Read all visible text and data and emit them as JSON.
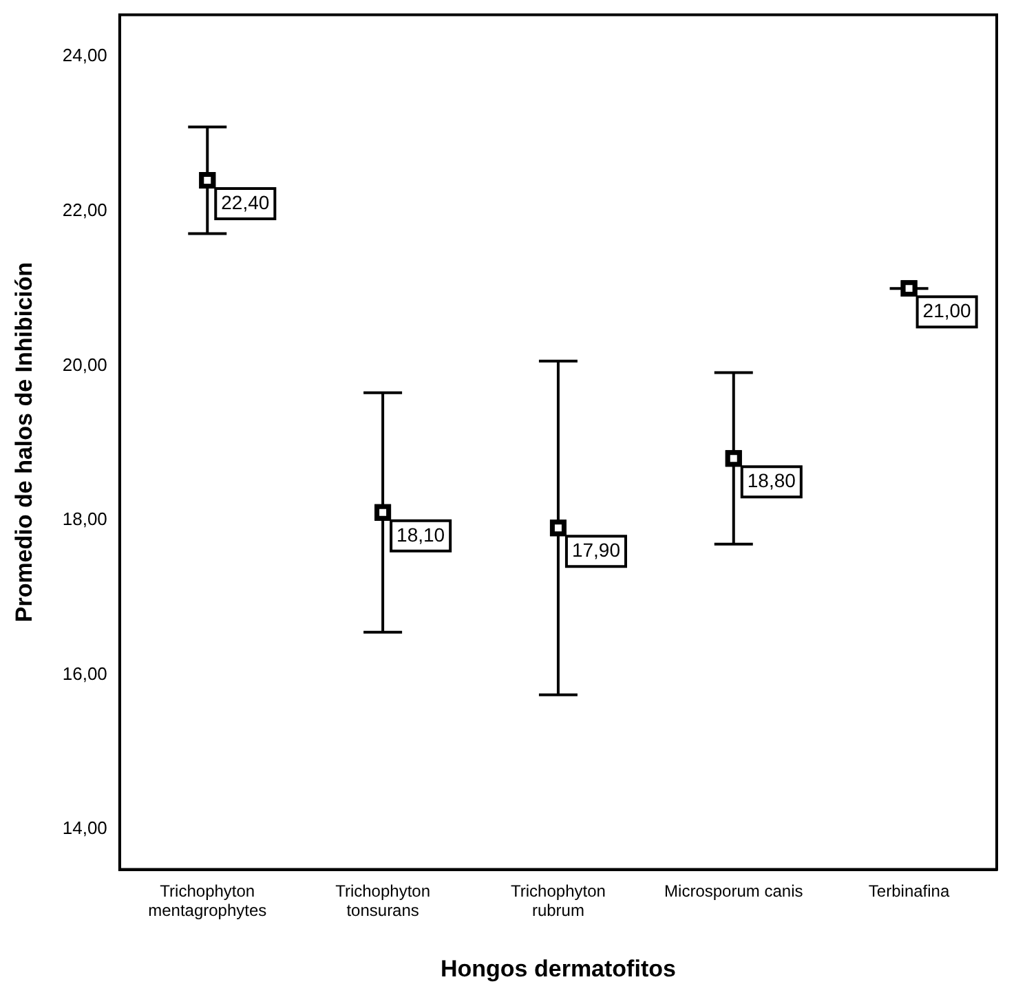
{
  "chart_data": {
    "type": "scatter",
    "xlabel": "Hongos dermatofitos",
    "ylabel": "Promedio de halos de Inhibición",
    "categories": [
      "Trichophyton\nmentagrophytes",
      "Trichophyton\ntonsurans",
      "Trichophyton\nrubrum",
      "Microsporum canis",
      "Terbinafina"
    ],
    "values": [
      22.4,
      18.1,
      17.9,
      18.8,
      21.0
    ],
    "errors": [
      0.69,
      1.55,
      2.16,
      1.11,
      0
    ],
    "value_labels": [
      "22,40",
      "18,10",
      "17,90",
      "18,80",
      "21,00"
    ],
    "color": "#000000",
    "marker": "square",
    "grid": false,
    "legend": false,
    "ylim": [
      13.48,
      24.54
    ],
    "yticks": [
      {
        "value": 14,
        "label": "14,00"
      },
      {
        "value": 16,
        "label": "16,00"
      },
      {
        "value": 18,
        "label": "18,00"
      },
      {
        "value": 20,
        "label": "20,00"
      },
      {
        "value": 22,
        "label": "22,00"
      },
      {
        "value": 24,
        "label": "24,00"
      }
    ]
  }
}
